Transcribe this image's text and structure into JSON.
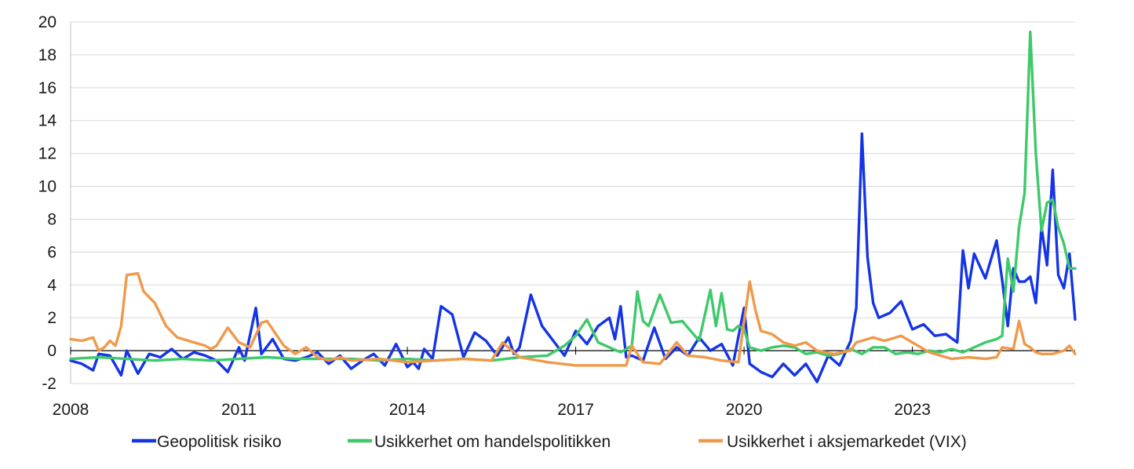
{
  "chart_data": {
    "type": "line",
    "title": "",
    "xlabel": "",
    "ylabel": "",
    "ylim": [
      -2,
      20
    ],
    "y_ticks": [
      "20",
      "18",
      "16",
      "14",
      "12",
      "10",
      "8",
      "6",
      "4",
      "2",
      "0",
      "-2"
    ],
    "xlim": [
      2008.0,
      2025.9
    ],
    "x_ticks": [
      "2008",
      "2011",
      "2014",
      "2017",
      "2020",
      "2023"
    ],
    "grid": "horizontal",
    "legend_position": "bottom",
    "colors": {
      "Geopolitisk risiko": "#1434e6",
      "Usikkerhet om handelspolitikken": "#3ec96a",
      "Usikkerhet i aksjemarkedet (VIX)": "#f0994a",
      "zero_line": "#000000",
      "grid": "#d9d9d9"
    },
    "series": [
      {
        "name": "Geopolitisk risiko",
        "x": [
          2008.0,
          2008.2,
          2008.4,
          2008.5,
          2008.7,
          2008.9,
          2009.0,
          2009.2,
          2009.4,
          2009.6,
          2009.8,
          2010.0,
          2010.2,
          2010.4,
          2010.6,
          2010.8,
          2011.0,
          2011.1,
          2011.3,
          2011.4,
          2011.6,
          2011.8,
          2012.0,
          2012.2,
          2012.4,
          2012.6,
          2012.8,
          2013.0,
          2013.2,
          2013.4,
          2013.6,
          2013.8,
          2014.0,
          2014.1,
          2014.2,
          2014.3,
          2014.45,
          2014.6,
          2014.8,
          2015.0,
          2015.2,
          2015.4,
          2015.6,
          2015.8,
          2015.9,
          2016.0,
          2016.2,
          2016.4,
          2016.6,
          2016.8,
          2017.0,
          2017.2,
          2017.4,
          2017.6,
          2017.7,
          2017.8,
          2017.9,
          2018.0,
          2018.2,
          2018.4,
          2018.6,
          2018.8,
          2019.0,
          2019.2,
          2019.4,
          2019.6,
          2019.8,
          2020.0,
          2020.1,
          2020.3,
          2020.5,
          2020.7,
          2020.9,
          2021.1,
          2021.3,
          2021.5,
          2021.7,
          2021.9,
          2022.0,
          2022.1,
          2022.2,
          2022.3,
          2022.4,
          2022.6,
          2022.8,
          2023.0,
          2023.2,
          2023.4,
          2023.6,
          2023.8,
          2023.9,
          2024.0,
          2024.1,
          2024.3,
          2024.5,
          2024.6,
          2024.7,
          2024.8,
          2024.9,
          2025.0,
          2025.1,
          2025.2,
          2025.3,
          2025.4,
          2025.5,
          2025.6,
          2025.7,
          2025.8,
          2025.9
        ],
        "values": [
          -0.6,
          -0.8,
          -1.2,
          -0.2,
          -0.3,
          -1.5,
          0.0,
          -1.4,
          -0.2,
          -0.4,
          0.1,
          -0.5,
          -0.1,
          -0.3,
          -0.6,
          -1.3,
          0.2,
          -0.6,
          2.6,
          -0.2,
          0.7,
          -0.5,
          -0.6,
          -0.4,
          -0.1,
          -0.8,
          -0.3,
          -1.1,
          -0.6,
          -0.2,
          -0.9,
          0.4,
          -1.0,
          -0.7,
          -1.1,
          0.1,
          -0.5,
          2.7,
          2.2,
          -0.4,
          1.1,
          0.6,
          -0.3,
          0.8,
          -0.2,
          0.2,
          3.4,
          1.5,
          0.6,
          -0.3,
          1.2,
          0.4,
          1.5,
          2.0,
          0.7,
          2.7,
          -0.4,
          -0.3,
          -0.6,
          1.4,
          -0.5,
          0.2,
          -0.3,
          0.8,
          0.0,
          0.4,
          -0.9,
          2.6,
          -0.8,
          -1.3,
          -1.6,
          -0.8,
          -1.5,
          -0.8,
          -1.9,
          -0.3,
          -0.9,
          0.6,
          2.6,
          13.2,
          5.7,
          2.9,
          2.0,
          2.3,
          3.0,
          1.3,
          1.6,
          0.9,
          1.0,
          0.5,
          6.1,
          3.8,
          5.9,
          4.4,
          6.7,
          4.3,
          1.5,
          5.0,
          4.2,
          4.2,
          4.5,
          2.9,
          7.5,
          5.2,
          11.0,
          4.6,
          3.8,
          5.9,
          1.9
        ]
      },
      {
        "name": "Usikkerhet om handelspolitikken",
        "x": [
          2008.0,
          2008.5,
          2009.0,
          2009.5,
          2010.0,
          2010.5,
          2011.0,
          2011.5,
          2012.0,
          2012.5,
          2013.0,
          2013.5,
          2014.0,
          2014.5,
          2015.0,
          2015.5,
          2016.0,
          2016.5,
          2016.8,
          2017.0,
          2017.2,
          2017.4,
          2017.6,
          2017.8,
          2018.0,
          2018.1,
          2018.2,
          2018.3,
          2018.5,
          2018.7,
          2018.9,
          2019.0,
          2019.2,
          2019.4,
          2019.5,
          2019.6,
          2019.7,
          2019.8,
          2019.9,
          2020.0,
          2020.1,
          2020.3,
          2020.5,
          2020.7,
          2020.9,
          2021.1,
          2021.3,
          2021.5,
          2021.7,
          2021.9,
          2022.1,
          2022.3,
          2022.5,
          2022.7,
          2022.9,
          2023.1,
          2023.3,
          2023.5,
          2023.7,
          2023.9,
          2024.1,
          2024.3,
          2024.5,
          2024.6,
          2024.7,
          2024.8,
          2024.9,
          2025.0,
          2025.1,
          2025.2,
          2025.3,
          2025.4,
          2025.5,
          2025.6,
          2025.7,
          2025.8,
          2025.9
        ],
        "values": [
          -0.5,
          -0.4,
          -0.5,
          -0.6,
          -0.5,
          -0.6,
          -0.5,
          -0.4,
          -0.5,
          -0.5,
          -0.5,
          -0.6,
          -0.5,
          -0.6,
          -0.5,
          -0.6,
          -0.4,
          -0.3,
          0.3,
          0.9,
          1.9,
          0.5,
          0.2,
          -0.1,
          0.3,
          3.6,
          1.8,
          1.5,
          3.4,
          1.7,
          1.8,
          1.4,
          0.6,
          3.7,
          1.5,
          3.5,
          1.3,
          1.2,
          1.5,
          1.3,
          0.2,
          0.0,
          0.2,
          0.3,
          0.2,
          -0.2,
          -0.1,
          -0.3,
          -0.2,
          0.1,
          -0.2,
          0.2,
          0.2,
          -0.2,
          -0.1,
          -0.2,
          0.0,
          -0.1,
          0.1,
          -0.1,
          0.2,
          0.5,
          0.7,
          0.9,
          5.6,
          3.6,
          7.5,
          9.6,
          19.4,
          12.0,
          7.3,
          9.0,
          9.2,
          7.5,
          6.5,
          5.0,
          5.0
        ]
      },
      {
        "name": "Usikkerhet i aksjemarkedet (VIX)",
        "x": [
          2008.0,
          2008.2,
          2008.4,
          2008.5,
          2008.6,
          2008.7,
          2008.8,
          2008.9,
          2009.0,
          2009.2,
          2009.3,
          2009.5,
          2009.7,
          2009.9,
          2010.1,
          2010.3,
          2010.4,
          2010.5,
          2010.6,
          2010.8,
          2011.0,
          2011.2,
          2011.4,
          2011.5,
          2011.6,
          2011.8,
          2012.0,
          2012.2,
          2012.4,
          2012.6,
          2012.8,
          2013.0,
          2013.5,
          2014.0,
          2014.5,
          2015.0,
          2015.5,
          2015.7,
          2016.0,
          2016.5,
          2017.0,
          2017.5,
          2017.9,
          2018.0,
          2018.2,
          2018.5,
          2018.8,
          2019.0,
          2019.3,
          2019.6,
          2019.9,
          2020.1,
          2020.2,
          2020.3,
          2020.5,
          2020.7,
          2020.9,
          2021.1,
          2021.3,
          2021.6,
          2021.9,
          2022.0,
          2022.3,
          2022.5,
          2022.8,
          2023.0,
          2023.3,
          2023.5,
          2023.7,
          2024.0,
          2024.3,
          2024.5,
          2024.6,
          2024.8,
          2024.9,
          2025.0,
          2025.1,
          2025.2,
          2025.3,
          2025.5,
          2025.7,
          2025.8,
          2025.9
        ],
        "values": [
          0.7,
          0.6,
          0.8,
          0.0,
          0.2,
          0.6,
          0.3,
          1.5,
          4.6,
          4.7,
          3.6,
          2.9,
          1.5,
          0.8,
          0.6,
          0.4,
          0.3,
          0.1,
          0.3,
          1.4,
          0.5,
          0.2,
          1.7,
          1.8,
          1.3,
          0.3,
          -0.2,
          0.2,
          -0.4,
          -0.6,
          -0.4,
          -0.6,
          -0.5,
          -0.7,
          -0.6,
          -0.5,
          -0.6,
          0.5,
          -0.4,
          -0.7,
          -0.9,
          -0.9,
          -0.9,
          0.3,
          -0.7,
          -0.8,
          0.5,
          -0.3,
          -0.4,
          -0.6,
          -0.7,
          4.2,
          2.5,
          1.2,
          1.0,
          0.5,
          0.3,
          0.5,
          0.0,
          -0.2,
          0.0,
          0.5,
          0.8,
          0.6,
          0.9,
          0.5,
          -0.1,
          -0.3,
          -0.5,
          -0.4,
          -0.5,
          -0.4,
          0.2,
          0.1,
          1.8,
          0.4,
          0.2,
          -0.1,
          -0.2,
          -0.2,
          0.0,
          0.3,
          -0.2
        ]
      }
    ]
  }
}
